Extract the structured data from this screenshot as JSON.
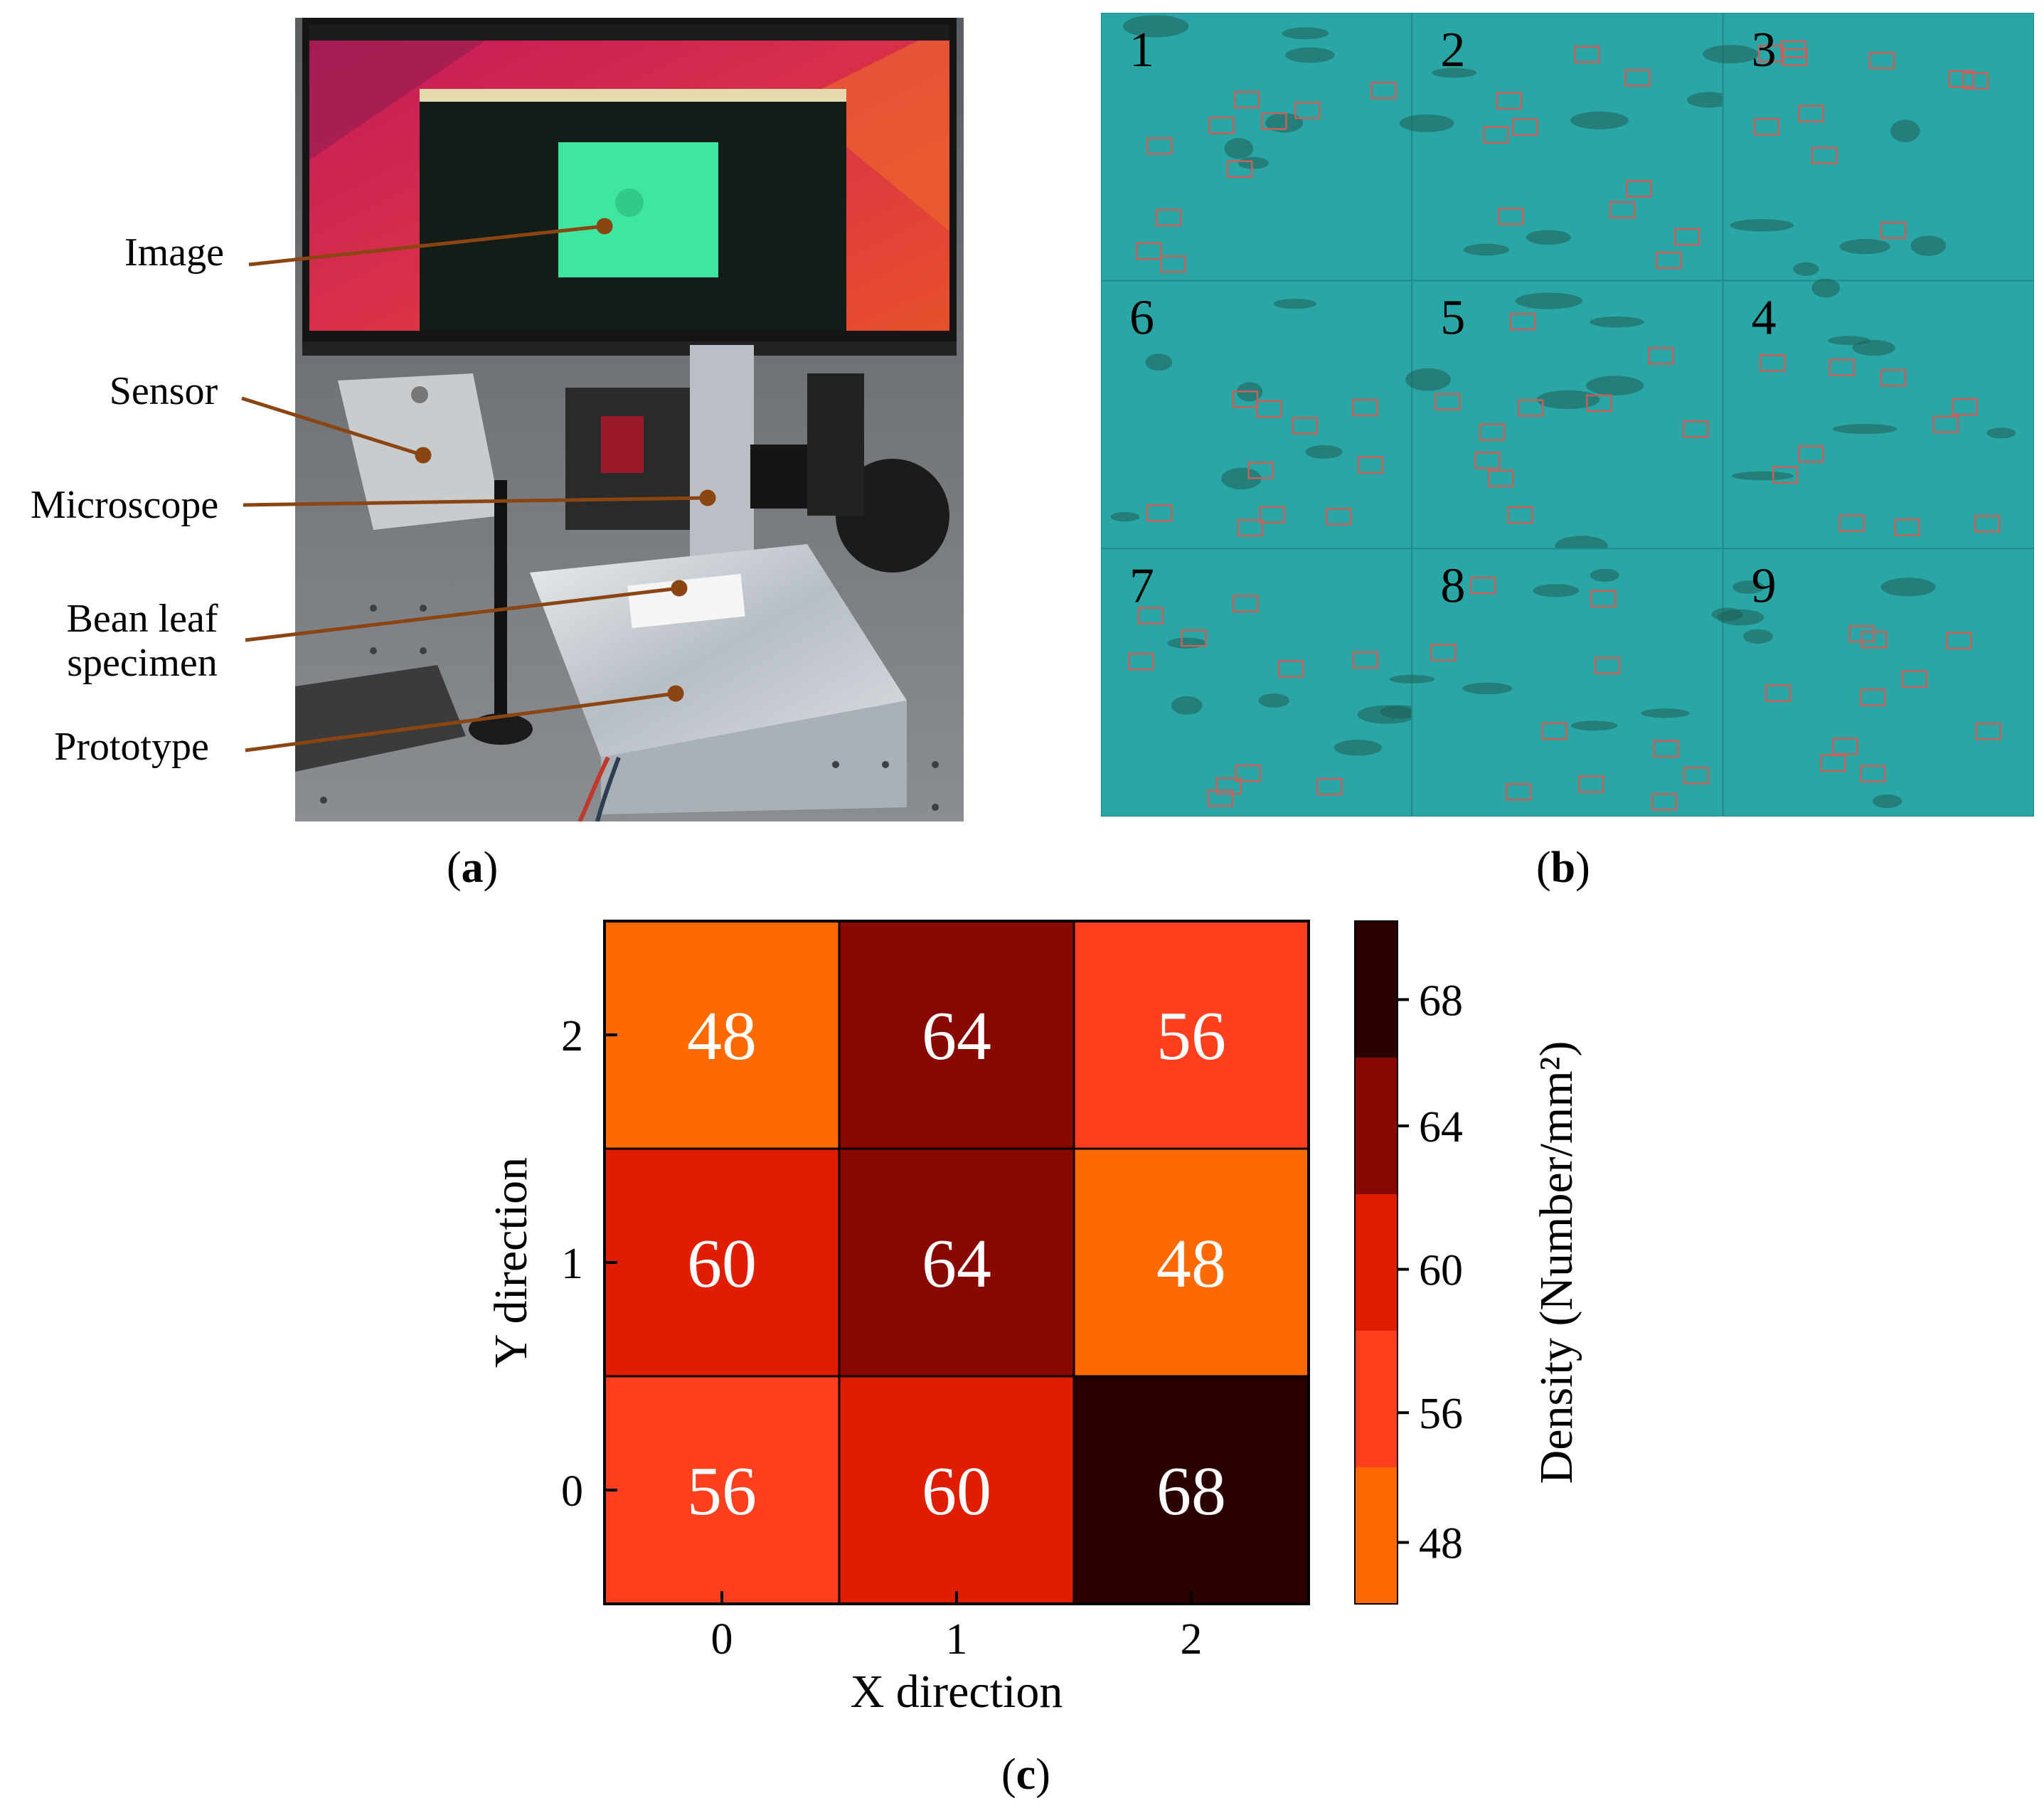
{
  "panel_a": {
    "label_letter": "a",
    "callouts": {
      "image": "Image",
      "sensor": "Sensor",
      "microscope": "Microscope",
      "bean_leaf_line1": "Bean leaf",
      "bean_leaf_line2": "specimen",
      "prototype": "Prototype"
    },
    "colors": {
      "leader_line": "#8b4513",
      "screen_image": "#3ee6a0"
    }
  },
  "panel_b": {
    "label_letter": "b",
    "tiles": [
      {
        "number": "1"
      },
      {
        "number": "2"
      },
      {
        "number": "3"
      },
      {
        "number": "6"
      },
      {
        "number": "5"
      },
      {
        "number": "4"
      },
      {
        "number": "7"
      },
      {
        "number": "8"
      },
      {
        "number": "9"
      }
    ],
    "colors": {
      "tile": "#2aa6a6",
      "box": "#c8605a"
    }
  },
  "panel_c": {
    "label_letter": "c"
  },
  "chart_data": {
    "type": "heatmap",
    "xlabel": "X direction",
    "ylabel": "Y direction",
    "x_ticks": [
      "0",
      "1",
      "2"
    ],
    "y_ticks": [
      "0",
      "1",
      "2"
    ],
    "values": [
      [
        56,
        60,
        68
      ],
      [
        60,
        64,
        48
      ],
      [
        48,
        64,
        56
      ]
    ],
    "colorbar": {
      "label": "Density (Number/mm²)",
      "ticks": [
        "48",
        "56",
        "60",
        "64",
        "68"
      ],
      "levels": [
        {
          "value": 48,
          "color": "#ff6a00"
        },
        {
          "value": 56,
          "color": "#ff3f1e"
        },
        {
          "value": 60,
          "color": "#e11d00"
        },
        {
          "value": 64,
          "color": "#880800"
        },
        {
          "value": 68,
          "color": "#2b0000"
        }
      ]
    }
  }
}
